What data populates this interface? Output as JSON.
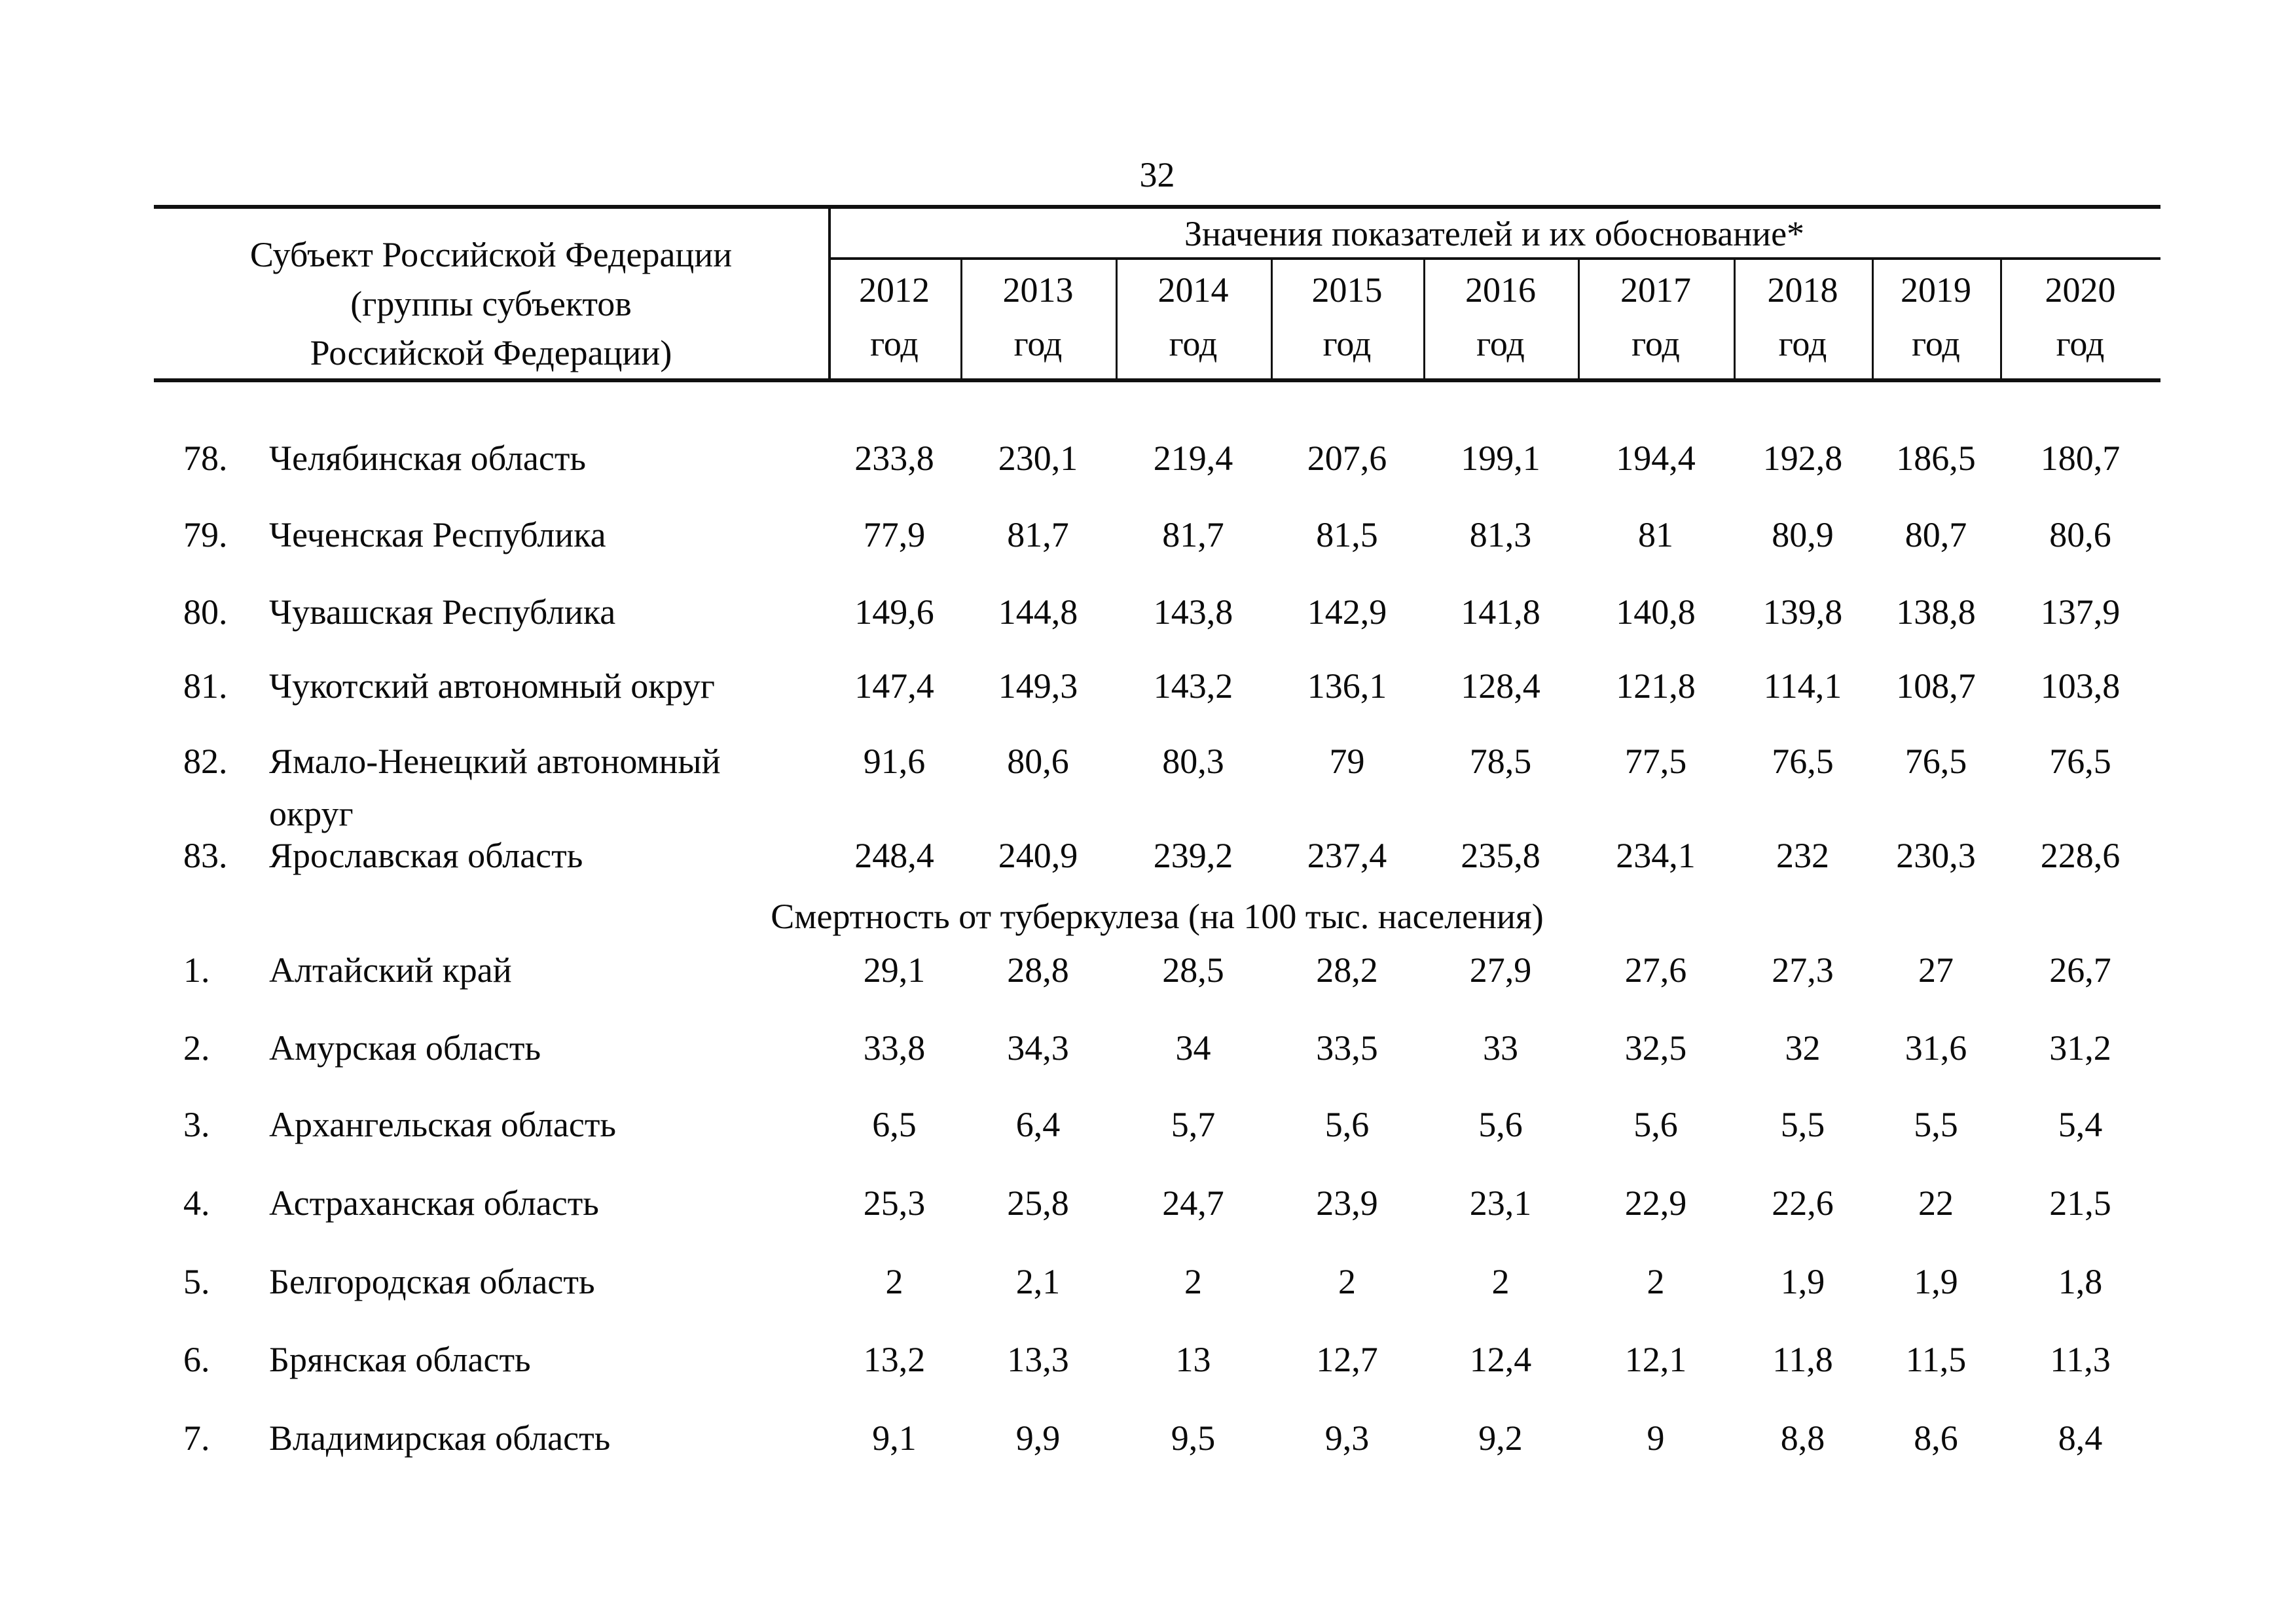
{
  "page_number": "32",
  "table": {
    "col1_header": "Субъект Российской Федерации\n(группы субъектов\nРоссийской Федерации)",
    "values_header": "Значения показателей и их обоснование*",
    "years": [
      "2012",
      "2013",
      "2014",
      "2015",
      "2016",
      "2017",
      "2018",
      "2019",
      "2020"
    ],
    "year_suffix": "год"
  },
  "groups": [
    {
      "title": "",
      "rows": [
        {
          "num": "78.",
          "name": "Челябинская область",
          "values": [
            "233,8",
            "230,1",
            "219,4",
            "207,6",
            "199,1",
            "194,4",
            "192,8",
            "186,5",
            "180,7"
          ]
        },
        {
          "num": "79.",
          "name": "Чеченская Республика",
          "values": [
            "77,9",
            "81,7",
            "81,7",
            "81,5",
            "81,3",
            "81",
            "80,9",
            "80,7",
            "80,6"
          ]
        },
        {
          "num": "80.",
          "name": "Чувашская Республика",
          "values": [
            "149,6",
            "144,8",
            "143,8",
            "142,9",
            "141,8",
            "140,8",
            "139,8",
            "138,8",
            "137,9"
          ]
        },
        {
          "num": "81.",
          "name": "Чукотский автономный округ",
          "values": [
            "147,4",
            "149,3",
            "143,2",
            "136,1",
            "128,4",
            "121,8",
            "114,1",
            "108,7",
            "103,8"
          ]
        },
        {
          "num": "82.",
          "name": "Ямало-Ненецкий автономный округ",
          "values": [
            "91,6",
            "80,6",
            "80,3",
            "79",
            "78,5",
            "77,5",
            "76,5",
            "76,5",
            "76,5"
          ]
        },
        {
          "num": "83.",
          "name": "Ярославская область",
          "values": [
            "248,4",
            "240,9",
            "239,2",
            "237,4",
            "235,8",
            "234,1",
            "232",
            "230,3",
            "228,6"
          ]
        }
      ]
    },
    {
      "title": "Смертность от туберкулеза (на 100 тыс. населения)",
      "rows": [
        {
          "num": "1.",
          "name": "Алтайский край",
          "values": [
            "29,1",
            "28,8",
            "28,5",
            "28,2",
            "27,9",
            "27,6",
            "27,3",
            "27",
            "26,7"
          ]
        },
        {
          "num": "2.",
          "name": "Амурская область",
          "values": [
            "33,8",
            "34,3",
            "34",
            "33,5",
            "33",
            "32,5",
            "32",
            "31,6",
            "31,2"
          ]
        },
        {
          "num": "3.",
          "name": "Архангельская область",
          "values": [
            "6,5",
            "6,4",
            "5,7",
            "5,6",
            "5,6",
            "5,6",
            "5,5",
            "5,5",
            "5,4"
          ]
        },
        {
          "num": "4.",
          "name": "Астраханская область",
          "values": [
            "25,3",
            "25,8",
            "24,7",
            "23,9",
            "23,1",
            "22,9",
            "22,6",
            "22",
            "21,5"
          ]
        },
        {
          "num": "5.",
          "name": "Белгородская область",
          "values": [
            "2",
            "2,1",
            "2",
            "2",
            "2",
            "2",
            "1,9",
            "1,9",
            "1,8"
          ]
        },
        {
          "num": "6.",
          "name": "Брянская область",
          "values": [
            "13,2",
            "13,3",
            "13",
            "12,7",
            "12,4",
            "12,1",
            "11,8",
            "11,5",
            "11,3"
          ]
        },
        {
          "num": "7.",
          "name": "Владимирская область",
          "values": [
            "9,1",
            "9,9",
            "9,5",
            "9,3",
            "9,2",
            "9",
            "8,8",
            "8,6",
            "8,4"
          ]
        }
      ]
    }
  ]
}
